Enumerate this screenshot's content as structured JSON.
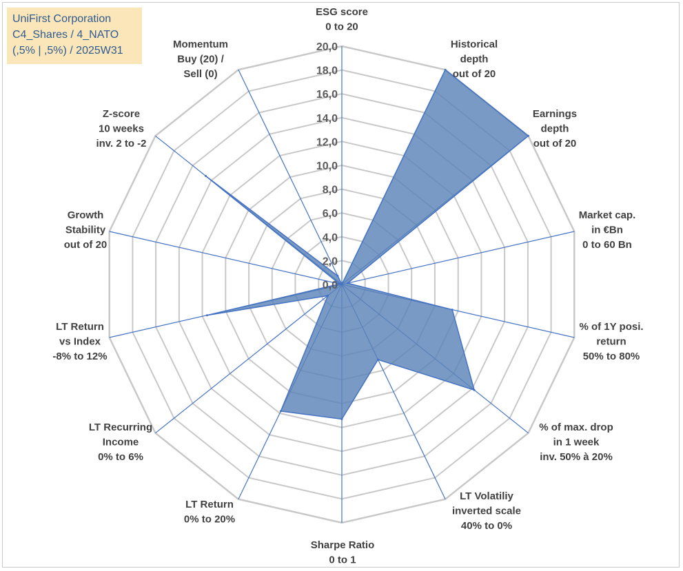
{
  "chart_data": {
    "type": "radar",
    "title_lines": [
      "UniFirst Corporation",
      "C4_Shares / 4_NATO",
      "(,5% | ,5%) / 2025W31"
    ],
    "rlim": [
      0,
      20
    ],
    "tick_values": [
      0,
      2,
      4,
      6,
      8,
      10,
      12,
      14,
      16,
      18,
      20
    ],
    "tick_labels": [
      "0,0",
      "2,0",
      "4,0",
      "6,0",
      "8,0",
      "10,0",
      "12,0",
      "14,0",
      "16,0",
      "18,0",
      "20,0"
    ],
    "grid": true,
    "categories": [
      [
        "ESG score",
        "0 to 20"
      ],
      [
        "Historical",
        "depth",
        "out of 20"
      ],
      [
        "Earnings",
        "depth",
        "out of 20"
      ],
      [
        "Market cap.",
        "in €Bn",
        "0 to 60 Bn"
      ],
      [
        "% of 1Y posi.",
        "return",
        "50% to 80%"
      ],
      [
        "% of max. drop",
        "in 1 week",
        "inv. 50% à 20%"
      ],
      [
        "LT Volatiliy",
        "inverted scale",
        "40% to 0%"
      ],
      [
        "Sharpe Ratio",
        "0 to 1"
      ],
      [
        "LT Return",
        "0% to 20%"
      ],
      [
        "LT Recurring",
        "Income",
        "0% to 6%"
      ],
      [
        "LT Return",
        "vs Index",
        "-8% to 12%"
      ],
      [
        "Growth",
        "Stability",
        "out of 20"
      ],
      [
        "Z-score",
        "10 weeks",
        "inv. 2 to -2"
      ],
      [
        "Momentum",
        "Buy (20) /",
        "Sell (0)"
      ]
    ],
    "series": [
      {
        "values": [
          0,
          20,
          20,
          0.5,
          9.5,
          14.2,
          7.0,
          11.3,
          11.8,
          1.5,
          11.6,
          0.2,
          14.6,
          0.8
        ],
        "fill": "#5b84b8",
        "stroke": "#4472c4"
      }
    ],
    "colors": {
      "grid": "#c8c8c8",
      "spoke": "#4472c4",
      "fill": "#5b84b8"
    }
  }
}
